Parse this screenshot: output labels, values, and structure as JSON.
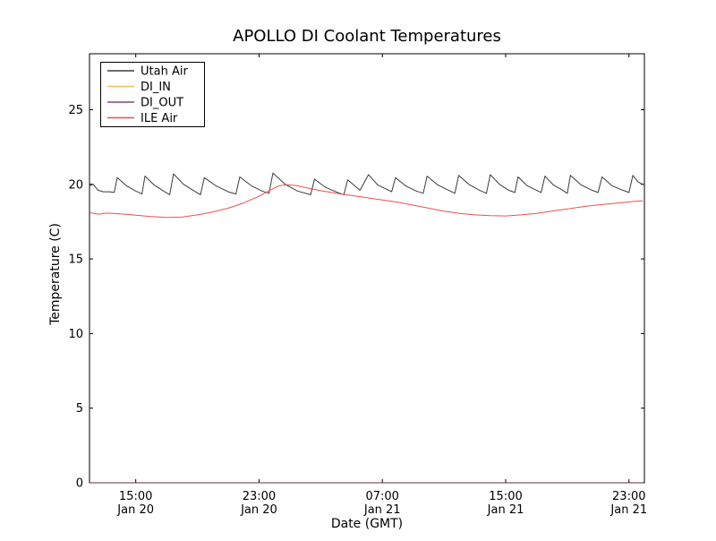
{
  "figure": {
    "background": "#ffffff",
    "axes_color": "#000000",
    "plot_area_note": "white plot box with black spines, inward ticks on all four sides, no gridlines"
  },
  "chart_data": {
    "type": "line",
    "title": "APOLLO DI Coolant Temperatures",
    "xlabel": "Date (GMT)",
    "ylabel": "Temperature (C)",
    "x_hours_origin": "left edge of plot = ~12:00 Jan 20 GMT, right edge = ~24:00 Jan 21 GMT",
    "xlim_hours": [
      0,
      36
    ],
    "ylim": [
      0,
      28.75
    ],
    "grid": false,
    "legend_position": "upper left",
    "axes": {
      "y": {
        "ticks": [
          {
            "value": 0,
            "label": "0"
          },
          {
            "value": 5,
            "label": "5"
          },
          {
            "value": 10,
            "label": "10"
          },
          {
            "value": 15,
            "label": "15"
          },
          {
            "value": 20,
            "label": "20"
          },
          {
            "value": 25,
            "label": "25"
          }
        ]
      },
      "x": {
        "ticks": [
          {
            "hour": 3,
            "time": "15:00",
            "date": "Jan 20"
          },
          {
            "hour": 11,
            "time": "23:00",
            "date": "Jan 20"
          },
          {
            "hour": 19,
            "time": "07:00",
            "date": "Jan 21"
          },
          {
            "hour": 27,
            "time": "15:00",
            "date": "Jan 21"
          },
          {
            "hour": 35,
            "time": "23:00",
            "date": "Jan 21"
          }
        ]
      }
    },
    "series": [
      {
        "name": "Utah Air",
        "color": "#3b3b3b",
        "description": "sawtooth oscillation ~1.8 h period, valleys ~19.3 C, peaks ~20.4-20.75 C",
        "points": [
          [
            0.0,
            19.9
          ],
          [
            0.25,
            20.0
          ],
          [
            0.55,
            19.6
          ],
          [
            0.9,
            19.5
          ],
          [
            1.3,
            19.5
          ],
          [
            1.6,
            19.45
          ],
          [
            1.8,
            20.45
          ],
          [
            2.4,
            19.9
          ],
          [
            3.0,
            19.55
          ],
          [
            3.4,
            19.35
          ],
          [
            3.6,
            20.55
          ],
          [
            4.2,
            19.95
          ],
          [
            4.8,
            19.55
          ],
          [
            5.2,
            19.3
          ],
          [
            5.45,
            20.7
          ],
          [
            6.1,
            20.0
          ],
          [
            6.8,
            19.55
          ],
          [
            7.2,
            19.3
          ],
          [
            7.45,
            20.45
          ],
          [
            8.2,
            19.9
          ],
          [
            9.0,
            19.5
          ],
          [
            9.5,
            19.35
          ],
          [
            9.75,
            20.5
          ],
          [
            10.5,
            19.9
          ],
          [
            11.2,
            19.55
          ],
          [
            11.65,
            19.4
          ],
          [
            11.9,
            20.75
          ],
          [
            12.7,
            20.0
          ],
          [
            13.5,
            19.55
          ],
          [
            14.35,
            19.3
          ],
          [
            14.6,
            20.35
          ],
          [
            15.3,
            19.8
          ],
          [
            16.1,
            19.45
          ],
          [
            16.5,
            19.3
          ],
          [
            16.75,
            20.3
          ],
          [
            17.2,
            19.9
          ],
          [
            17.55,
            19.6
          ],
          [
            18.1,
            20.65
          ],
          [
            18.7,
            19.95
          ],
          [
            19.3,
            19.65
          ],
          [
            19.6,
            19.5
          ],
          [
            19.85,
            20.45
          ],
          [
            20.5,
            19.9
          ],
          [
            21.2,
            19.55
          ],
          [
            21.65,
            19.4
          ],
          [
            21.9,
            20.55
          ],
          [
            22.6,
            19.95
          ],
          [
            23.3,
            19.6
          ],
          [
            23.7,
            19.4
          ],
          [
            23.95,
            20.6
          ],
          [
            24.6,
            20.0
          ],
          [
            25.3,
            19.6
          ],
          [
            25.75,
            19.4
          ],
          [
            26.0,
            20.65
          ],
          [
            26.6,
            20.0
          ],
          [
            27.2,
            19.6
          ],
          [
            27.6,
            19.45
          ],
          [
            27.8,
            20.5
          ],
          [
            28.4,
            19.9
          ],
          [
            29.0,
            19.6
          ],
          [
            29.3,
            19.45
          ],
          [
            29.55,
            20.55
          ],
          [
            30.1,
            19.95
          ],
          [
            30.7,
            19.6
          ],
          [
            31.0,
            19.4
          ],
          [
            31.2,
            20.6
          ],
          [
            31.9,
            19.95
          ],
          [
            32.6,
            19.6
          ],
          [
            33.0,
            19.45
          ],
          [
            33.25,
            20.5
          ],
          [
            33.9,
            19.9
          ],
          [
            34.6,
            19.6
          ],
          [
            35.0,
            19.45
          ],
          [
            35.25,
            20.6
          ],
          [
            35.6,
            20.15
          ],
          [
            35.9,
            20.0
          ]
        ]
      },
      {
        "name": "DI_IN",
        "color": "#fdbc54",
        "description": "flat at 0 C, lies on bottom spine (tints it maroon)",
        "points": [
          [
            0.0,
            0
          ],
          [
            35.9,
            0
          ]
        ]
      },
      {
        "name": "DI_OUT",
        "color": "#8a3b96",
        "description": "flat at 0 C, lies on bottom spine (tints it maroon)",
        "points": [
          [
            0.0,
            0
          ],
          [
            35.9,
            0
          ]
        ]
      },
      {
        "name": "ILE Air",
        "color": "#ef4f4f",
        "description": "smooth curve: ~18.1 start, min ~17.8 near 17:00 Jan 20, peak ~20.0 near 00:30 Jan 21, min ~17.9 near 14:00 Jan 21, ends ~18.9",
        "points": [
          [
            0.0,
            18.1
          ],
          [
            0.6,
            18.0
          ],
          [
            1.1,
            18.07
          ],
          [
            2.0,
            18.02
          ],
          [
            3.0,
            17.93
          ],
          [
            4.0,
            17.84
          ],
          [
            5.0,
            17.78
          ],
          [
            6.0,
            17.8
          ],
          [
            7.0,
            17.95
          ],
          [
            8.0,
            18.15
          ],
          [
            9.0,
            18.4
          ],
          [
            10.0,
            18.75
          ],
          [
            11.0,
            19.2
          ],
          [
            11.7,
            19.6
          ],
          [
            12.3,
            19.9
          ],
          [
            12.8,
            19.97
          ],
          [
            13.4,
            19.92
          ],
          [
            14.0,
            19.78
          ],
          [
            15.0,
            19.57
          ],
          [
            16.0,
            19.4
          ],
          [
            17.0,
            19.25
          ],
          [
            18.0,
            19.1
          ],
          [
            19.0,
            18.95
          ],
          [
            20.0,
            18.8
          ],
          [
            21.0,
            18.6
          ],
          [
            22.0,
            18.4
          ],
          [
            23.0,
            18.2
          ],
          [
            24.0,
            18.05
          ],
          [
            25.0,
            17.95
          ],
          [
            26.0,
            17.9
          ],
          [
            27.0,
            17.88
          ],
          [
            28.0,
            17.95
          ],
          [
            29.0,
            18.05
          ],
          [
            30.0,
            18.2
          ],
          [
            31.0,
            18.35
          ],
          [
            32.0,
            18.5
          ],
          [
            33.0,
            18.62
          ],
          [
            34.0,
            18.72
          ],
          [
            35.0,
            18.82
          ],
          [
            35.9,
            18.9
          ]
        ]
      }
    ]
  }
}
